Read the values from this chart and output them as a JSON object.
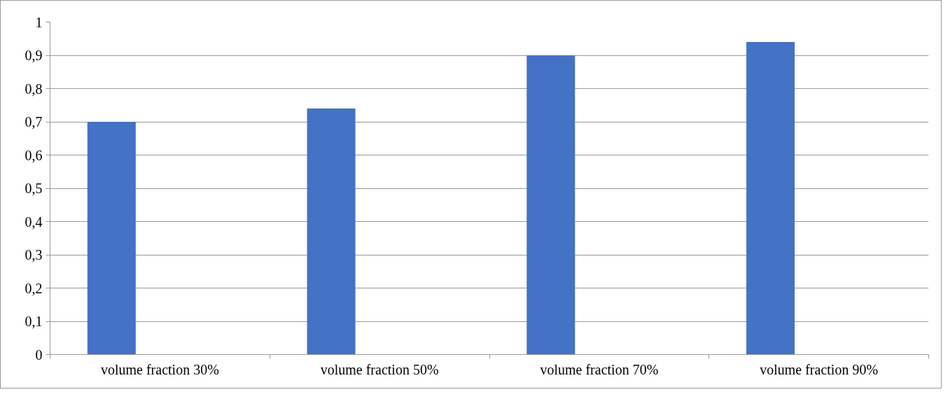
{
  "chart_data": {
    "type": "bar",
    "categories": [
      "volume fraction 30%",
      "volume fraction 50%",
      "volume fraction 70%",
      "volume fraction 90%"
    ],
    "values": [
      0.7,
      0.74,
      0.9,
      0.94
    ],
    "color": "#4472c4",
    "ylim": [
      0,
      1
    ],
    "yticks": [
      0,
      {
        "value": 0.1,
        "label": "0,1"
      },
      {
        "value": 0.2,
        "label": "0,2"
      },
      {
        "value": 0.3,
        "label": "0,3"
      },
      {
        "value": 0.4,
        "label": "0,4"
      },
      {
        "value": 0.5,
        "label": "0,5"
      },
      {
        "value": 0.6,
        "label": "0,6"
      },
      {
        "value": 0.7,
        "label": "0,7"
      },
      {
        "value": 0.8,
        "label": "0,8"
      },
      {
        "value": 0.9,
        "label": "0,9"
      },
      1
    ],
    "grid": "y"
  }
}
